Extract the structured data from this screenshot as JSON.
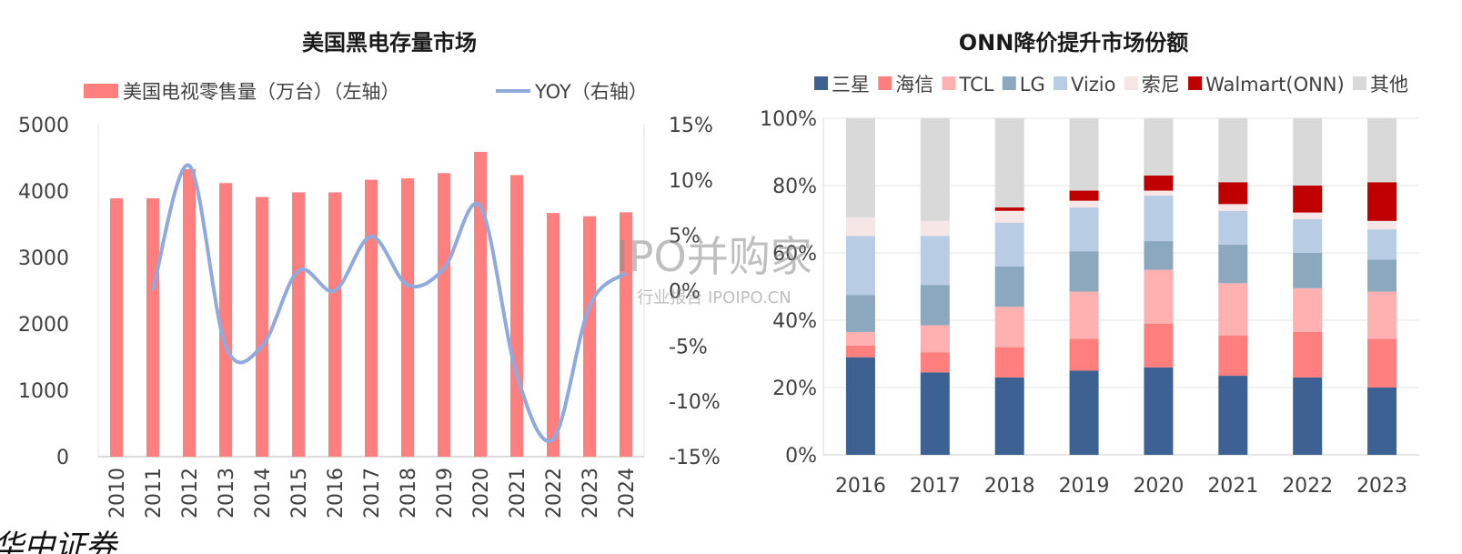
{
  "watermark": {
    "main": "IPO并购家",
    "sub": "行业报告 IPOIPO.CN"
  },
  "corner_mark": "华中证券",
  "chart_data": [
    {
      "type": "bar+line",
      "title": "美国黑电存量市场",
      "categories": [
        "2010",
        "2011",
        "2012",
        "2013",
        "2014",
        "2015",
        "2016",
        "2017",
        "2018",
        "2019",
        "2020",
        "2021",
        "2022",
        "2023",
        "2024"
      ],
      "series": [
        {
          "name": "美国电视零售量（万台）（左轴）",
          "kind": "bar",
          "axis": "left",
          "color": "#ff7f7f",
          "values": [
            3890,
            3890,
            4330,
            4120,
            3910,
            3980,
            3980,
            4170,
            4190,
            4270,
            4590,
            4240,
            3670,
            3620,
            3680
          ]
        },
        {
          "name": "YOY（右轴）",
          "kind": "line",
          "axis": "right",
          "color": "#8faadc",
          "values": [
            null,
            0.0,
            11.3,
            -5.0,
            -5.0,
            1.8,
            0.0,
            4.9,
            0.5,
            2.0,
            7.6,
            -7.6,
            -13.4,
            -1.4,
            1.6
          ]
        }
      ],
      "left_axis": {
        "ylim": [
          0,
          5000
        ],
        "ticks": [
          "0",
          "1000",
          "2000",
          "3000",
          "4000",
          "5000"
        ]
      },
      "right_axis": {
        "ylim": [
          -15,
          15
        ],
        "ticks": [
          "-15%",
          "-10%",
          "-5%",
          "0%",
          "5%",
          "10%",
          "15%"
        ]
      },
      "legend_position": "top"
    },
    {
      "type": "stacked-bar",
      "title": "ONN降价提升市场份额",
      "categories": [
        "2016",
        "2017",
        "2018",
        "2019",
        "2020",
        "2021",
        "2022",
        "2023"
      ],
      "series": [
        {
          "name": "三星",
          "color": "#3c6192",
          "values": [
            29,
            24.5,
            23,
            25,
            26,
            23.5,
            23,
            20
          ]
        },
        {
          "name": "海信",
          "color": "#ff7f7f",
          "values": [
            3.5,
            6,
            9,
            9.5,
            13,
            12,
            13.5,
            14.5
          ]
        },
        {
          "name": "TCL",
          "color": "#ffb0b0",
          "values": [
            4,
            8,
            12,
            14,
            16,
            15.5,
            13,
            14
          ]
        },
        {
          "name": "LG",
          "color": "#8ba8bf",
          "values": [
            11,
            12,
            12,
            12,
            8.5,
            11.5,
            10.5,
            9.5
          ]
        },
        {
          "name": "Vizio",
          "color": "#b8cde4",
          "values": [
            17.5,
            14.5,
            13,
            13,
            13.5,
            10,
            10,
            9
          ]
        },
        {
          "name": "索尼",
          "color": "#f6e6e6",
          "values": [
            5.5,
            4.5,
            3.5,
            2,
            1.5,
            2,
            2,
            2.5
          ]
        },
        {
          "name": "Walmart(ONN)",
          "color": "#c00000",
          "values": [
            0,
            0,
            1,
            3,
            4.5,
            6.5,
            8,
            11.5
          ]
        },
        {
          "name": "其他",
          "color": "#d9d9d9",
          "values": [
            29.5,
            30.5,
            26.5,
            21.5,
            17,
            19,
            20,
            19
          ]
        }
      ],
      "ylim": [
        0,
        100
      ],
      "ticks": [
        "0%",
        "20%",
        "40%",
        "60%",
        "80%",
        "100%"
      ],
      "legend_position": "top"
    }
  ]
}
